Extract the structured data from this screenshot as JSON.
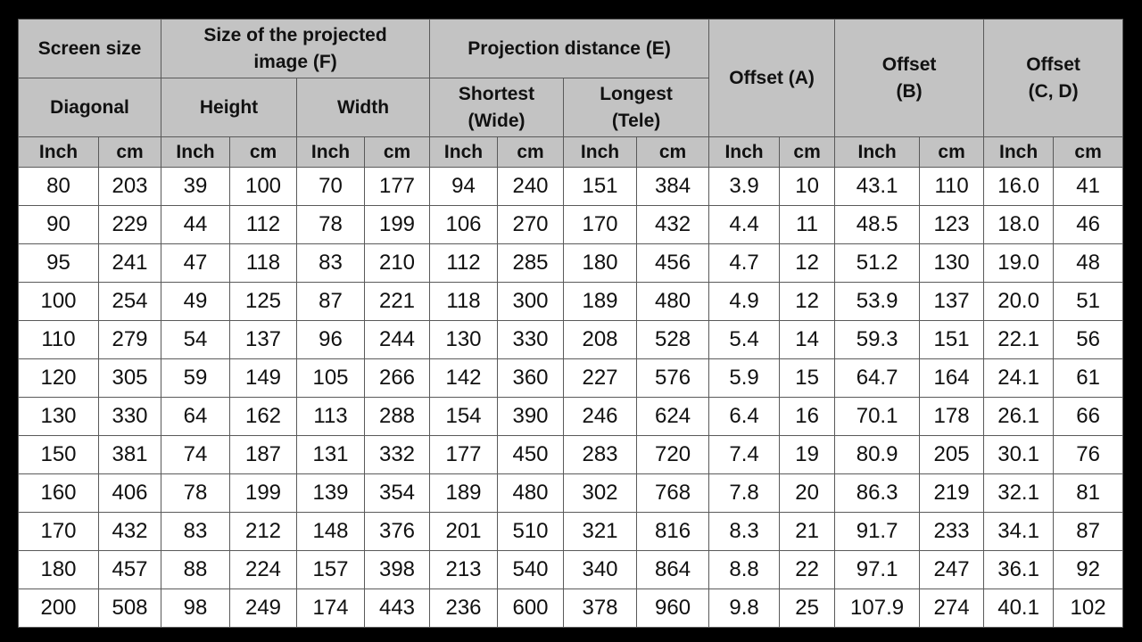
{
  "table": {
    "group_headers": [
      [
        "Screen size"
      ],
      [
        "Size of the projected",
        "image (F)"
      ],
      [
        "Projection distance (E)"
      ],
      [
        "Offset (A)"
      ],
      [
        "Offset",
        "(B)"
      ],
      [
        "Offset",
        "(C, D)"
      ]
    ],
    "sub_headers": [
      [
        "Diagonal"
      ],
      [
        "Height"
      ],
      [
        "Width"
      ],
      [
        "Shortest",
        "(Wide)"
      ],
      [
        "Longest",
        "(Tele)"
      ]
    ],
    "unit_headers": [
      "Inch",
      "cm",
      "Inch",
      "cm",
      "Inch",
      "cm",
      "Inch",
      "cm",
      "Inch",
      "cm",
      "Inch",
      "cm",
      "Inch",
      "cm",
      "Inch",
      "cm"
    ],
    "rows": [
      [
        "80",
        "203",
        "39",
        "100",
        "70",
        "177",
        "94",
        "240",
        "151",
        "384",
        "3.9",
        "10",
        "43.1",
        "110",
        "16.0",
        "41"
      ],
      [
        "90",
        "229",
        "44",
        "112",
        "78",
        "199",
        "106",
        "270",
        "170",
        "432",
        "4.4",
        "11",
        "48.5",
        "123",
        "18.0",
        "46"
      ],
      [
        "95",
        "241",
        "47",
        "118",
        "83",
        "210",
        "112",
        "285",
        "180",
        "456",
        "4.7",
        "12",
        "51.2",
        "130",
        "19.0",
        "48"
      ],
      [
        "100",
        "254",
        "49",
        "125",
        "87",
        "221",
        "118",
        "300",
        "189",
        "480",
        "4.9",
        "12",
        "53.9",
        "137",
        "20.0",
        "51"
      ],
      [
        "110",
        "279",
        "54",
        "137",
        "96",
        "244",
        "130",
        "330",
        "208",
        "528",
        "5.4",
        "14",
        "59.3",
        "151",
        "22.1",
        "56"
      ],
      [
        "120",
        "305",
        "59",
        "149",
        "105",
        "266",
        "142",
        "360",
        "227",
        "576",
        "5.9",
        "15",
        "64.7",
        "164",
        "24.1",
        "61"
      ],
      [
        "130",
        "330",
        "64",
        "162",
        "113",
        "288",
        "154",
        "390",
        "246",
        "624",
        "6.4",
        "16",
        "70.1",
        "178",
        "26.1",
        "66"
      ],
      [
        "150",
        "381",
        "74",
        "187",
        "131",
        "332",
        "177",
        "450",
        "283",
        "720",
        "7.4",
        "19",
        "80.9",
        "205",
        "30.1",
        "76"
      ],
      [
        "160",
        "406",
        "78",
        "199",
        "139",
        "354",
        "189",
        "480",
        "302",
        "768",
        "7.8",
        "20",
        "86.3",
        "219",
        "32.1",
        "81"
      ],
      [
        "170",
        "432",
        "83",
        "212",
        "148",
        "376",
        "201",
        "510",
        "321",
        "816",
        "8.3",
        "21",
        "91.7",
        "233",
        "34.1",
        "87"
      ],
      [
        "180",
        "457",
        "88",
        "224",
        "157",
        "398",
        "213",
        "540",
        "340",
        "864",
        "8.8",
        "22",
        "97.1",
        "247",
        "36.1",
        "92"
      ],
      [
        "200",
        "508",
        "98",
        "249",
        "174",
        "443",
        "236",
        "600",
        "378",
        "960",
        "9.8",
        "25",
        "107.9",
        "274",
        "40.1",
        "102"
      ]
    ]
  }
}
